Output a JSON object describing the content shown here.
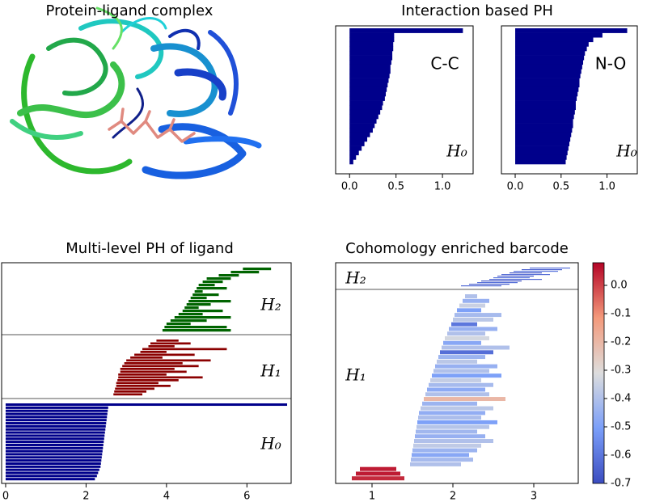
{
  "chart_data": [
    {
      "type": "image",
      "title": "Protein-ligand complex"
    },
    {
      "type": "barcode",
      "title": "Interaction based PH",
      "xlim": [
        -0.15,
        1.33
      ],
      "xticks": [
        {
          "value": 0,
          "label": "0.0"
        },
        {
          "value": 0.5,
          "label": "0.5"
        },
        {
          "value": 1,
          "label": "1.0"
        }
      ],
      "panels": [
        {
          "label": "C-C",
          "dim_label": "H₀",
          "color": "#00008b",
          "values": [
            1.22,
            0.48,
            0.48,
            0.47,
            0.47,
            0.46,
            0.46,
            0.45,
            0.44,
            0.44,
            0.43,
            0.42,
            0.41,
            0.4,
            0.39,
            0.38,
            0.36,
            0.35,
            0.33,
            0.31,
            0.29,
            0.27,
            0.25,
            0.22,
            0.19,
            0.16,
            0.13,
            0.1,
            0.07,
            0.04
          ]
        },
        {
          "label": "N-O",
          "dim_label": "H₀",
          "color": "#00008b",
          "values": [
            1.22,
            0.95,
            0.85,
            0.8,
            0.78,
            0.76,
            0.75,
            0.74,
            0.73,
            0.72,
            0.71,
            0.7,
            0.7,
            0.69,
            0.68,
            0.67,
            0.66,
            0.66,
            0.65,
            0.64,
            0.63,
            0.63,
            0.62,
            0.61,
            0.6,
            0.59,
            0.58,
            0.57,
            0.56,
            0.55
          ]
        }
      ]
    },
    {
      "type": "barcode",
      "title": "Multi-level PH of ligand",
      "xlim": [
        -0.1,
        7.1
      ],
      "xticks": [
        0,
        2,
        4,
        6
      ],
      "series": [
        {
          "name": "H₂",
          "color": "#006400",
          "births": [
            5.9,
            5.6,
            5.3,
            5.0,
            4.9,
            4.8,
            4.75,
            4.7,
            4.65,
            4.6,
            4.55,
            4.5,
            4.45,
            4.4,
            4.3,
            4.2,
            4.1,
            4.0,
            3.95,
            3.9
          ],
          "deaths": [
            6.6,
            6.3,
            5.8,
            5.6,
            5.4,
            5.2,
            5.5,
            4.9,
            5.3,
            5.0,
            5.6,
            5.1,
            4.8,
            5.4,
            4.9,
            5.6,
            5.0,
            4.6,
            5.5,
            5.6
          ]
        },
        {
          "name": "H₁",
          "color": "#8b0000",
          "births": [
            3.75,
            3.6,
            3.55,
            3.4,
            3.35,
            3.2,
            3.1,
            3.0,
            2.95,
            2.9,
            2.85,
            2.85,
            2.8,
            2.8,
            2.78,
            2.75,
            2.75,
            2.72,
            2.7,
            2.68
          ],
          "deaths": [
            4.3,
            4.6,
            4.2,
            5.5,
            4.0,
            4.7,
            3.9,
            5.1,
            4.4,
            4.8,
            4.2,
            4.5,
            4.0,
            4.9,
            4.3,
            3.8,
            4.1,
            3.7,
            3.5,
            3.4
          ]
        },
        {
          "name": "H₀",
          "color": "#00008b",
          "births": [
            0,
            0,
            0,
            0,
            0,
            0,
            0,
            0,
            0,
            0,
            0,
            0,
            0,
            0,
            0,
            0,
            0,
            0,
            0,
            0,
            0,
            0,
            0,
            0,
            0
          ],
          "deaths": [
            7.0,
            2.55,
            2.54,
            2.53,
            2.52,
            2.51,
            2.5,
            2.49,
            2.48,
            2.47,
            2.46,
            2.45,
            2.44,
            2.43,
            2.42,
            2.41,
            2.4,
            2.39,
            2.38,
            2.37,
            2.36,
            2.33,
            2.3,
            2.27,
            2.22
          ]
        }
      ]
    },
    {
      "type": "barcode",
      "title": "Cohomology enriched barcode",
      "xlim": [
        0.55,
        3.55
      ],
      "xticks": [
        1,
        2,
        3
      ],
      "colormap": "coolwarm",
      "clim": [
        -0.7,
        0.08
      ],
      "cticks": [
        {
          "value": 0,
          "label": "0.0"
        },
        -0.1,
        -0.2,
        -0.3,
        -0.4,
        -0.5,
        -0.6,
        -0.7
      ],
      "series": [
        {
          "name": "H₂",
          "births": [
            2.95,
            2.85,
            2.75,
            2.7,
            2.6,
            2.55,
            2.5,
            2.45,
            2.35,
            2.3,
            2.2,
            2.1
          ],
          "deaths": [
            3.45,
            3.35,
            3.3,
            3.1,
            3.2,
            3.0,
            2.95,
            3.1,
            2.85,
            2.8,
            2.7,
            2.6
          ],
          "weights": [
            -0.62,
            -0.65,
            -0.6,
            -0.68,
            -0.63,
            -0.66,
            -0.6,
            -0.64,
            -0.67,
            -0.62,
            -0.65,
            -0.63
          ]
        },
        {
          "name": "H₁",
          "births": [
            2.15,
            2.12,
            2.08,
            2.05,
            2.02,
            2.0,
            1.98,
            1.95,
            1.93,
            1.9,
            1.88,
            1.86,
            1.84,
            1.82,
            1.8,
            1.78,
            1.76,
            1.74,
            1.72,
            1.7,
            1.68,
            1.66,
            1.64,
            1.62,
            1.6,
            1.58,
            1.57,
            1.56,
            1.55,
            1.54,
            1.53,
            1.52,
            1.51,
            1.5,
            1.49,
            1.48,
            1.47,
            0.85,
            0.8,
            0.75
          ],
          "deaths": [
            2.3,
            2.45,
            2.4,
            2.35,
            2.6,
            2.5,
            2.3,
            2.55,
            2.4,
            2.45,
            2.35,
            2.7,
            2.5,
            2.4,
            2.3,
            2.55,
            2.45,
            2.6,
            2.35,
            2.5,
            2.4,
            2.45,
            2.65,
            2.3,
            2.5,
            2.4,
            2.35,
            2.55,
            2.45,
            2.3,
            2.4,
            2.5,
            2.35,
            2.3,
            2.2,
            2.25,
            2.1,
            1.3,
            1.35,
            1.4
          ],
          "weights": [
            -0.4,
            -0.45,
            -0.35,
            -0.5,
            -0.42,
            -0.38,
            -0.6,
            -0.45,
            -0.4,
            -0.33,
            -0.48,
            -0.4,
            -0.62,
            -0.44,
            -0.38,
            -0.45,
            -0.4,
            -0.5,
            -0.36,
            -0.42,
            -0.47,
            -0.4,
            -0.2,
            -0.44,
            -0.38,
            -0.46,
            -0.41,
            -0.5,
            -0.39,
            -0.43,
            -0.45,
            -0.4,
            -0.37,
            -0.44,
            -0.48,
            -0.42,
            -0.4,
            0.05,
            0.05,
            0.03
          ]
        }
      ]
    }
  ]
}
